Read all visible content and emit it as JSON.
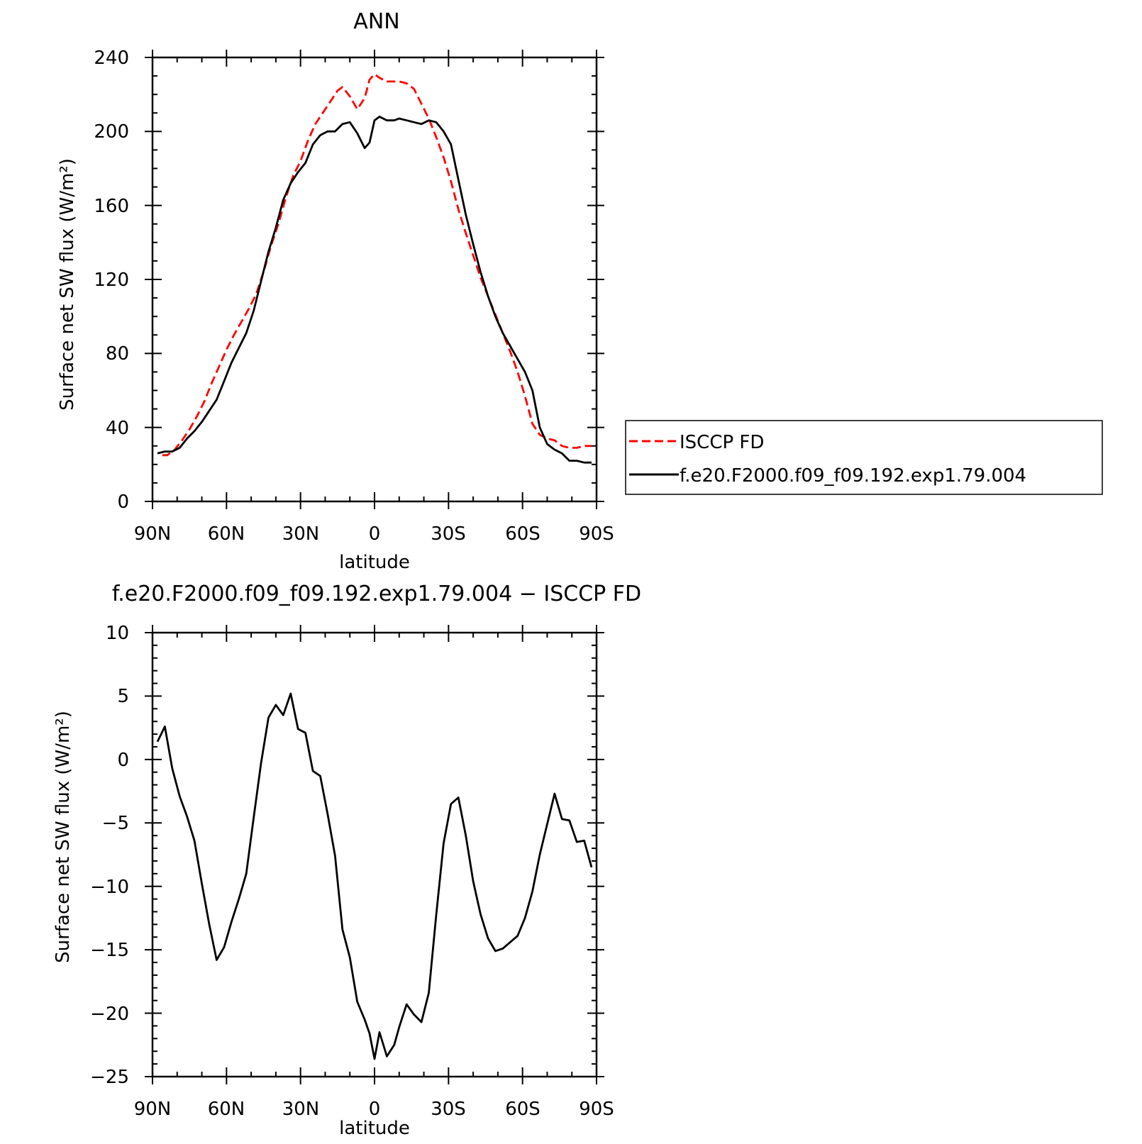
{
  "colors": {
    "obs": "#ff0000",
    "model": "#000000",
    "frame": "#000000"
  },
  "x_tick_labels": [
    "90N",
    "60N",
    "30N",
    "0",
    "30S",
    "60S",
    "90S"
  ],
  "chart_data": [
    {
      "type": "line",
      "title": "ANN",
      "xlabel": "latitude",
      "ylabel": "Surface net SW flux (W/m²)",
      "xlim": [
        90,
        -90
      ],
      "ylim": [
        0,
        240
      ],
      "yticks": [
        0,
        40,
        80,
        120,
        160,
        200,
        240
      ],
      "ytick_labels": [
        "0",
        "40",
        "80",
        "120",
        "160",
        "200",
        "240"
      ],
      "legend_position": "right",
      "series": [
        {
          "name": "ISCCP FD",
          "style": "dashed",
          "color": "#ff0000",
          "x": [
            86,
            84,
            81,
            78,
            75,
            72,
            69,
            66,
            63,
            60,
            57,
            54,
            51,
            48,
            45,
            42,
            39,
            36,
            33,
            30,
            27,
            24,
            21,
            18,
            15,
            13,
            10,
            7,
            4,
            2,
            0,
            -2,
            -5,
            -8,
            -10,
            -13,
            -16,
            -19,
            -22,
            -25,
            -28,
            -31,
            -34,
            -37,
            -40,
            -43,
            -46,
            -49,
            -52,
            -55,
            -58,
            -61,
            -64,
            -67,
            -70,
            -73,
            -76,
            -79,
            -82,
            -85,
            -88
          ],
          "y": [
            25,
            25,
            28,
            33,
            39,
            46,
            54,
            64,
            73,
            82,
            90,
            97,
            104,
            112,
            124,
            138,
            150,
            164,
            176,
            184,
            195,
            204,
            210,
            216,
            222,
            224,
            219,
            212,
            218,
            228,
            231,
            229,
            227,
            227,
            227,
            226,
            223,
            215,
            207,
            197,
            186,
            173,
            158,
            145,
            133,
            121,
            111,
            101,
            91,
            81,
            70,
            57,
            42,
            36,
            34,
            33,
            30,
            29,
            29,
            30,
            30
          ]
        },
        {
          "name": "f.e20.F2000.f09_f09.192.exp1.79.004",
          "style": "solid",
          "color": "#000000",
          "x": [
            88,
            85,
            82,
            79,
            76,
            73,
            70,
            67,
            64,
            61,
            58,
            55,
            52,
            49,
            46,
            43,
            40,
            37,
            34,
            31,
            28,
            25,
            22,
            19,
            16,
            13,
            10,
            7,
            4,
            2,
            0,
            -2,
            -5,
            -8,
            -10,
            -13,
            -16,
            -19,
            -22,
            -25,
            -28,
            -31,
            -34,
            -37,
            -40,
            -43,
            -46,
            -49,
            -52,
            -55,
            -58,
            -61,
            -64,
            -67,
            -70,
            -73,
            -76,
            -79,
            -82,
            -85,
            -88
          ],
          "y": [
            26,
            27,
            27,
            29,
            34,
            38,
            43,
            49,
            55,
            65,
            75,
            83,
            91,
            103,
            119,
            135,
            148,
            163,
            172,
            178,
            183,
            193,
            198,
            200,
            200,
            204,
            205,
            199,
            191,
            194,
            206,
            208,
            206,
            206,
            207,
            206,
            205,
            204,
            206,
            205,
            200,
            193,
            174,
            155,
            139,
            124,
            111,
            100,
            91,
            84,
            77,
            70,
            60,
            40,
            31,
            28,
            26,
            22,
            22,
            21,
            21
          ]
        }
      ]
    },
    {
      "type": "line",
      "title": "f.e20.F2000.f09_f09.192.exp1.79.004 − ISCCP FD",
      "xlabel": "latitude",
      "ylabel": "Surface net SW flux (W/m²)",
      "xlim": [
        90,
        -90
      ],
      "ylim": [
        -25,
        10
      ],
      "yticks": [
        -25,
        -20,
        -15,
        -10,
        -5,
        0,
        5,
        10
      ],
      "ytick_labels": [
        "−25",
        "−20",
        "−15",
        "−10",
        "−5",
        "0",
        "5",
        "10"
      ],
      "series": [
        {
          "style": "solid",
          "color": "#000000",
          "x": [
            88,
            85,
            82,
            79,
            76,
            73,
            70,
            67,
            64,
            61,
            58,
            55,
            52,
            49,
            46,
            43,
            40,
            37,
            34,
            31,
            28,
            25,
            22,
            19,
            16,
            13,
            10,
            7,
            4,
            2,
            0,
            -2,
            -5,
            -8,
            -10,
            -13,
            -16,
            -19,
            -22,
            -25,
            -28,
            -31,
            -34,
            -37,
            -40,
            -43,
            -46,
            -49,
            -52,
            -55,
            -58,
            -61,
            -64,
            -67,
            -70,
            -73,
            -76,
            -79,
            -82,
            -85,
            -88
          ],
          "y": [
            1.4,
            2.6,
            -0.7,
            -2.9,
            -4.5,
            -6.4,
            -9.8,
            -13.0,
            -15.8,
            -14.8,
            -12.8,
            -11.0,
            -9.0,
            -4.6,
            -0.3,
            3.3,
            4.3,
            3.5,
            5.2,
            2.4,
            2.1,
            -0.9,
            -1.3,
            -4.3,
            -7.6,
            -13.4,
            -15.6,
            -19.1,
            -20.5,
            -21.6,
            -23.6,
            -21.5,
            -23.4,
            -22.5,
            -21.1,
            -19.3,
            -20.1,
            -20.7,
            -18.4,
            -12.3,
            -6.6,
            -3.5,
            -3.0,
            -6.0,
            -9.6,
            -12.2,
            -14.1,
            -15.1,
            -14.9,
            -14.4,
            -13.9,
            -12.5,
            -10.4,
            -7.5,
            -5.1,
            -2.7,
            -4.7,
            -4.8,
            -6.5,
            -6.4,
            -8.5
          ]
        }
      ]
    }
  ]
}
